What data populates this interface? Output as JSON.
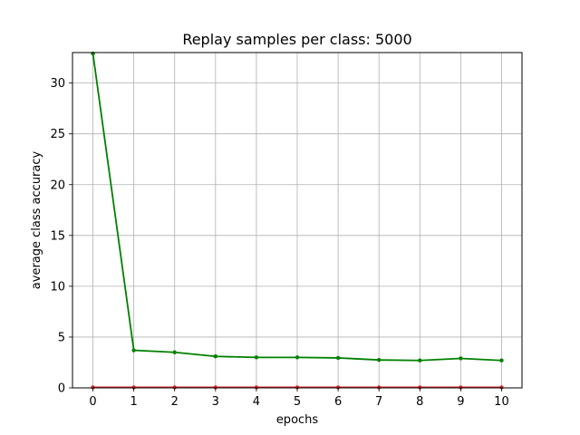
{
  "chart_data": {
    "type": "line",
    "title": "Replay samples per class: 5000",
    "xlabel": "epochs",
    "ylabel": "average class accuracy",
    "x": [
      0,
      1,
      2,
      3,
      4,
      5,
      6,
      7,
      8,
      9,
      10
    ],
    "xlim": [
      -0.5,
      10.5
    ],
    "ylim": [
      0,
      33
    ],
    "xticks": [
      "0",
      "1",
      "2",
      "3",
      "4",
      "5",
      "6",
      "7",
      "8",
      "9",
      "10"
    ],
    "yticks": [
      "0",
      "5",
      "10",
      "15",
      "20",
      "25",
      "30"
    ],
    "grid": true,
    "series": [
      {
        "color": "#008000",
        "marker": "dot",
        "values": [
          32.9,
          3.7,
          3.5,
          3.1,
          3.0,
          3.0,
          2.95,
          2.75,
          2.7,
          2.9,
          2.7
        ]
      },
      {
        "color": "#d62728",
        "marker": "dot",
        "values": [
          0.05,
          0.05,
          0.05,
          0.05,
          0.05,
          0.05,
          0.05,
          0.05,
          0.05,
          0.05,
          0.05
        ]
      }
    ]
  }
}
